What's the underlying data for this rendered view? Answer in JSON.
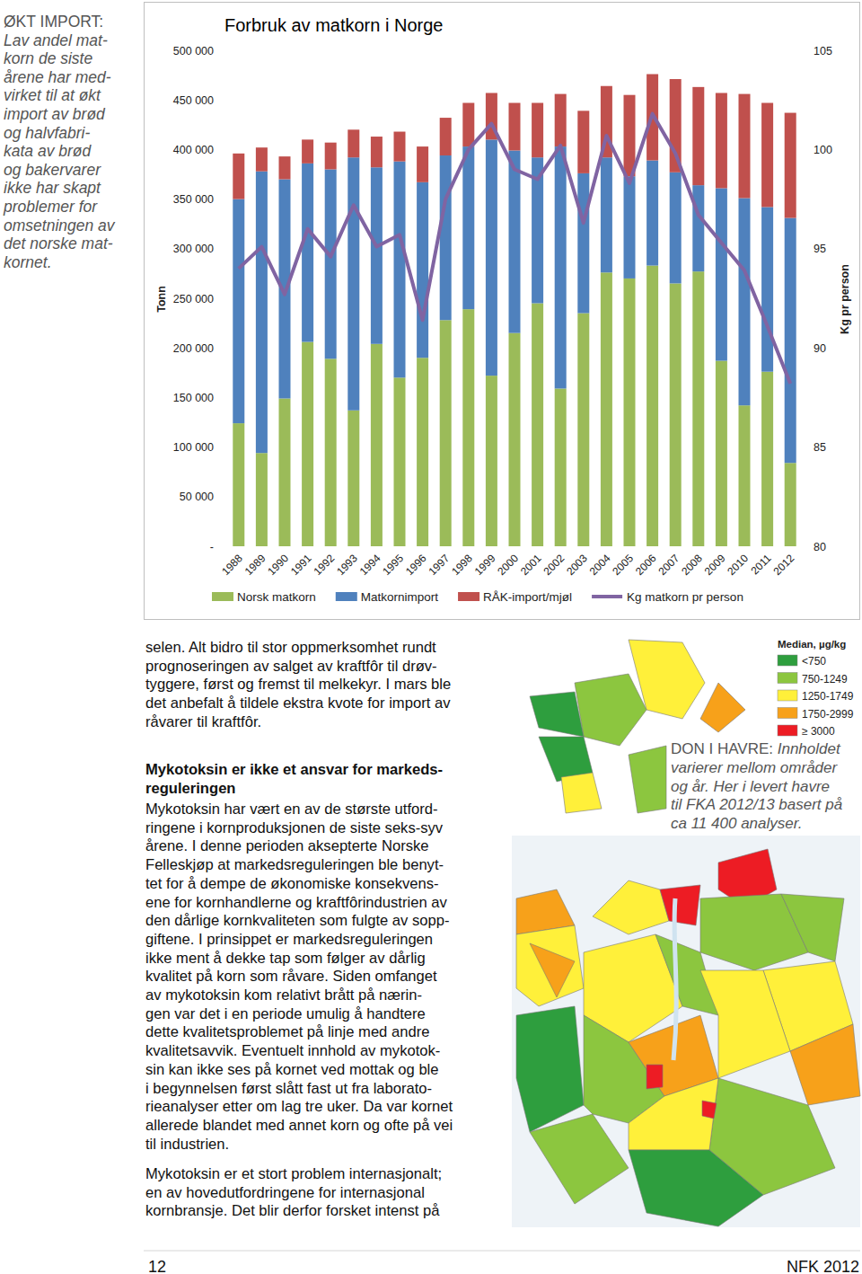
{
  "chart_data": {
    "type": "bar",
    "stacked": true,
    "title": "Forbruk av matkorn i Norge",
    "categories": [
      "1988",
      "1989",
      "1990",
      "1991",
      "1992",
      "1993",
      "1994",
      "1995",
      "1996",
      "1997",
      "1998",
      "1999",
      "2000",
      "2001",
      "2002",
      "2003",
      "2004",
      "2005",
      "2006",
      "2007",
      "2008",
      "2009",
      "2010",
      "2011",
      "2012"
    ],
    "series": [
      {
        "name": "Norsk matkorn",
        "color": "#9bbb59",
        "values": [
          124000,
          94000,
          149000,
          206000,
          189000,
          137000,
          204000,
          170000,
          190000,
          228000,
          239000,
          172000,
          215000,
          245000,
          159000,
          235000,
          276000,
          270000,
          283000,
          265000,
          277000,
          187000,
          142000,
          176000,
          84000
        ]
      },
      {
        "name": "Matkornimport",
        "color": "#4f81bd",
        "values": [
          226000,
          284000,
          221000,
          180000,
          191000,
          255000,
          178000,
          218000,
          177000,
          166000,
          164000,
          238000,
          184000,
          147000,
          244000,
          141000,
          116000,
          103000,
          106000,
          112000,
          87000,
          174000,
          209000,
          166000,
          247000
        ]
      },
      {
        "name": "RÅK-import/mjøl",
        "color": "#c0504d",
        "values": [
          46000,
          24000,
          23000,
          24000,
          27000,
          28000,
          31000,
          30000,
          36000,
          38000,
          44000,
          47000,
          48000,
          55000,
          53000,
          63000,
          72000,
          82000,
          87000,
          94000,
          99000,
          96000,
          105000,
          105000,
          106000
        ]
      },
      {
        "name": "Kg matkorn pr person",
        "type": "line",
        "axis": "y2",
        "color": "#8064a2",
        "values": [
          94.0,
          95.1,
          92.7,
          96.0,
          94.6,
          97.2,
          95.1,
          95.7,
          91.4,
          97.5,
          100.0,
          101.3,
          99.0,
          98.5,
          100.2,
          96.3,
          100.7,
          98.3,
          101.8,
          99.8,
          96.7,
          95.3,
          93.9,
          91.1,
          88.2
        ]
      }
    ],
    "y_label": "Tonn",
    "ylim": [
      0,
      500000
    ],
    "yticks": [
      {
        "value": 0,
        "label": "-"
      },
      {
        "value": 50000,
        "label": "50 000"
      },
      {
        "value": 100000,
        "label": "100 000"
      },
      {
        "value": 150000,
        "label": "150 000"
      },
      {
        "value": 200000,
        "label": "200 000"
      },
      {
        "value": 250000,
        "label": "250 000"
      },
      {
        "value": 300000,
        "label": "300 000"
      },
      {
        "value": 350000,
        "label": "350 000"
      },
      {
        "value": 400000,
        "label": "400 000"
      },
      {
        "value": 450000,
        "label": "450 000"
      },
      {
        "value": 500000,
        "label": "500 000"
      }
    ],
    "y2_label": "Kg pr person",
    "y2lim": [
      80,
      105
    ],
    "y2ticks": [
      80,
      85,
      90,
      95,
      100,
      105
    ],
    "grid": false,
    "legend": "bottom"
  },
  "page": {
    "caption_left": {
      "title": "ØKT IMPORT:",
      "lines": [
        "Lav andel mat-",
        "korn de siste",
        "årene har med-",
        "virket til at økt",
        "import av brød",
        "og halvfabri-",
        "kata av brød",
        "og bakervarer",
        "ikke har skapt",
        "problemer for",
        "omsetningen av",
        "det norske mat-",
        "kornet."
      ]
    },
    "body": {
      "paragraph_1": [
        "selen. Alt bidro til stor oppmerksomhet rundt",
        "prognoseringen av salget av kraftfôr til drøv-",
        "tyggere, først og fremst til melkekyr. I mars ble",
        "det anbefalt å tildele ekstra kvote for import av",
        "råvarer til kraftfôr."
      ],
      "heading": [
        "Mykotoksin er ikke et ansvar for markeds-",
        "reguleringen"
      ],
      "paragraph_2": [
        "Mykotoksin har vært en av de største utford-",
        "ringene i kornproduksjonen de siste seks-syv",
        "årene. I denne perioden aksepterte Norske",
        "Felleskjøp at markedsreguleringen ble benyt-",
        "tet for å dempe de økonomiske konsekvens-",
        "ene for kornhandlerne og kraftfôrindustrien av",
        "den dårlige kornkvaliteten som fulgte av sopp-",
        "giftene. I prinsippet er markedsreguleringen",
        "ikke ment å dekke tap som følger av dårlig",
        "kvalitet på korn som råvare. Siden omfanget",
        "av mykotoksin kom relativt brått på nærin-",
        "gen var det i en periode umulig å handtere",
        "dette kvalitetsproblemet på linje med andre",
        "kvalitetsavvik. Eventuelt innhold av mykotok-",
        "sin kan ikke ses på kornet ved mottak og ble",
        "i begynnelsen først slått fast ut fra laborato-",
        "rieanalyser etter om lag tre uker. Da var kornet",
        "allerede blandet med annet korn og ofte på vei",
        "til industrien."
      ],
      "paragraph_3": [
        "Mykotoksin er et stort problem internasjonalt;",
        "en av hovedutfordringene for internasjonal",
        "kornbransje. Det blir derfor forsket intenst på"
      ]
    },
    "map": {
      "legend_title": "Median, µg/kg",
      "legend": [
        {
          "label": "<750",
          "color": "#2e9e3e"
        },
        {
          "label": "750-1249",
          "color": "#8cc63f"
        },
        {
          "label": "1250-1749",
          "color": "#fff03a"
        },
        {
          "label": "1750-2999",
          "color": "#f7a11a"
        },
        {
          "label": "≥ 3000",
          "color": "#ed1c24"
        }
      ],
      "caption": {
        "title": "DON I HAVRE:",
        "lines": [
          "Innholdet",
          "varierer mellom områder",
          "og år. Her i levert havre",
          "til FKA 2012/13 basert på",
          "ca 11 400 analyser."
        ]
      }
    },
    "footer": {
      "page_number": "12",
      "publication": "NFK 2012"
    }
  }
}
